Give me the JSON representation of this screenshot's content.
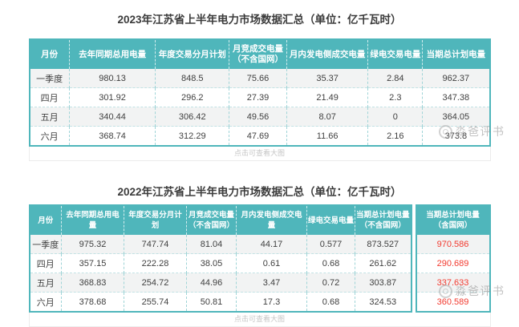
{
  "theme": {
    "accent_teal": "#4FB6BB",
    "highlight_red": "#F23B30",
    "alt_row_gray": "#F2F3F3"
  },
  "ui": {
    "caption_hint": "点击可查看大图",
    "watermark_text": "淼爸评书"
  },
  "chart_data": [
    {
      "type": "table",
      "title": "2023年江苏省上半年电力市场数据汇总（单位：亿千瓦时）",
      "columns": [
        "月份",
        "去年同期总用电量",
        "年度交易分月计划",
        "月竞成交电量\n（不含国网）",
        "月内发电侧成交电量",
        "绿电交易电量",
        "当期总计划电量"
      ],
      "rows": [
        [
          "一季度",
          "980.13",
          "848.5",
          "75.66",
          "35.37",
          "2.84",
          "962.37"
        ],
        [
          "四月",
          "301.92",
          "296.2",
          "27.39",
          "21.49",
          "2.3",
          "347.38"
        ],
        [
          "五月",
          "340.44",
          "306.42",
          "49.56",
          "8.07",
          "0",
          "364.05"
        ],
        [
          "六月",
          "368.74",
          "312.29",
          "47.69",
          "11.66",
          "2.16",
          "373.8"
        ]
      ],
      "split_last_column": false,
      "highlight_last_column": false
    },
    {
      "type": "table",
      "title": "2022年江苏省上半年电力市场数据汇总（单位：亿千瓦时）",
      "columns": [
        "月份",
        "去年同期总用电量",
        "年度交易分月计划",
        "月竞成交电量\n（不含国网）",
        "月内发电侧成交电量",
        "绿电交易电量",
        "当期总计划电量\n（不含国网）",
        "当期总计划电量\n（含国网）"
      ],
      "rows": [
        [
          "一季度",
          "975.32",
          "747.74",
          "81.04",
          "44.17",
          "0.577",
          "873.527",
          "970.586"
        ],
        [
          "四月",
          "357.15",
          "222.28",
          "38.05",
          "0.61",
          "0.68",
          "261.62",
          "290.689"
        ],
        [
          "五月",
          "368.83",
          "254.72",
          "44.96",
          "3.47",
          "0.72",
          "303.87",
          "337.633"
        ],
        [
          "六月",
          "378.68",
          "255.74",
          "50.81",
          "17.3",
          "0.68",
          "324.53",
          "360.589"
        ]
      ],
      "split_last_column": true,
      "highlight_last_column": true
    }
  ]
}
